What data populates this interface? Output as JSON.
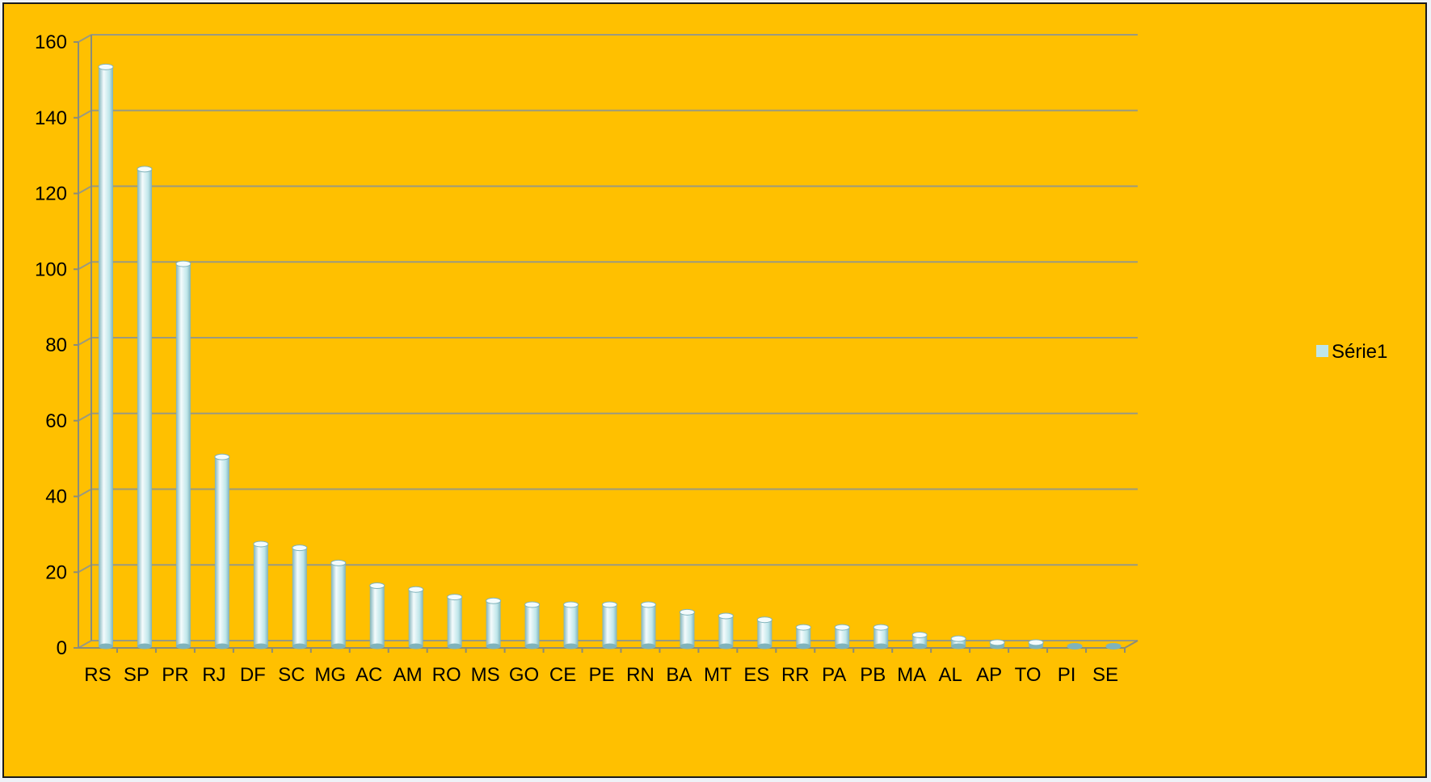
{
  "colors": {
    "plot_background": "#ffc000",
    "bar_fill": "#bfe6ea",
    "bar_highlight": "#f4fbfc",
    "bar_shade": "#7fb3bb",
    "gridline": "#9a9a80",
    "axis": "#8c8c78"
  },
  "chart_data": {
    "type": "bar",
    "style": "3d-cylinder",
    "title": "",
    "xlabel": "",
    "ylabel": "",
    "ylim": [
      0,
      160
    ],
    "yticks": [
      0,
      20,
      40,
      60,
      80,
      100,
      120,
      140,
      160
    ],
    "grid": true,
    "legend_position": "right",
    "categories": [
      "RS",
      "SP",
      "PR",
      "RJ",
      "DF",
      "SC",
      "MG",
      "AC",
      "AM",
      "RO",
      "MS",
      "GO",
      "CE",
      "PE",
      "RN",
      "BA",
      "MT",
      "ES",
      "RR",
      "PA",
      "PB",
      "MA",
      "AL",
      "AP",
      "TO",
      "PI",
      "SE"
    ],
    "series": [
      {
        "name": "Série1",
        "values": [
          153,
          126,
          101,
          50,
          27,
          26,
          22,
          16,
          15,
          13,
          12,
          11,
          11,
          11,
          11,
          9,
          8,
          7,
          5,
          5,
          5,
          3,
          2,
          1,
          1,
          0,
          0
        ]
      }
    ]
  }
}
